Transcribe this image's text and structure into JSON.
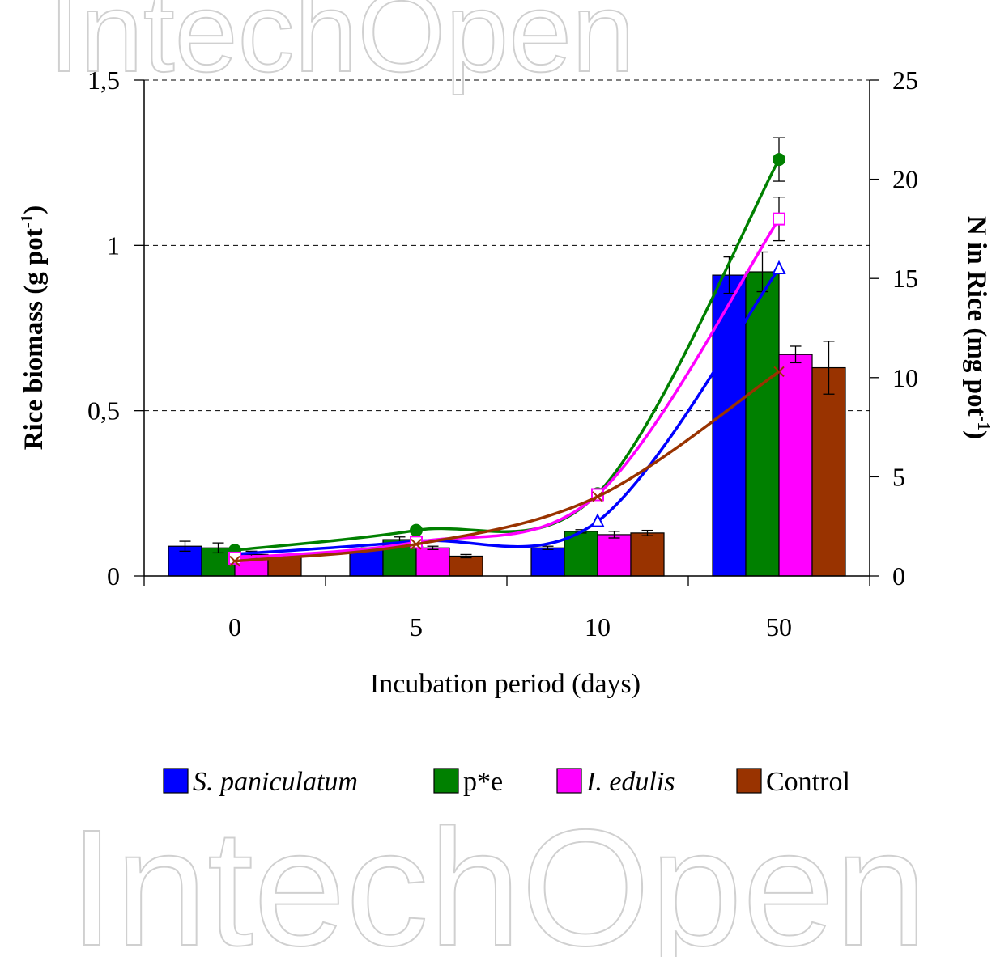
{
  "watermark": "IntechOpen",
  "chart_data": {
    "type": "bar",
    "xlabel": "Incubation period (days)",
    "ylabel_left": {
      "main": "Rice biomass (g pot",
      "sup": "-1",
      "close": ")"
    },
    "ylabel_right": {
      "main": "N in Rice (mg pot",
      "sup": "-1",
      "close": ")"
    },
    "categories": [
      "0",
      "5",
      "10",
      "50"
    ],
    "ylim_left": [
      0,
      1.5
    ],
    "ylim_right": [
      0,
      25
    ],
    "yticks_left": [
      "0",
      "0,5",
      "1",
      "1,5"
    ],
    "yticks_right": [
      "0",
      "5",
      "10",
      "15",
      "20",
      "25"
    ],
    "grid": "dashed horizontal",
    "legend_position": "bottom",
    "legend": [
      {
        "label": "S. paniculatum",
        "italic": true,
        "color": "#0000ff"
      },
      {
        "label": "p*e",
        "italic": false,
        "color": "#008000"
      },
      {
        "label": "I. edulis",
        "italic": true,
        "color": "#ff00ff"
      },
      {
        "label": "Control",
        "italic": false,
        "color": "#993300"
      }
    ],
    "bar_series": [
      {
        "name": "S. paniculatum",
        "color": "#0000ff",
        "values": [
          0.09,
          0.08,
          0.085,
          0.91
        ],
        "errors": [
          0.015,
          0.005,
          0.005,
          0.055
        ]
      },
      {
        "name": "p*e",
        "color": "#008000",
        "values": [
          0.085,
          0.11,
          0.135,
          0.92
        ],
        "errors": [
          0.015,
          0.008,
          0.005,
          0.06
        ]
      },
      {
        "name": "I. edulis",
        "color": "#ff00ff",
        "values": [
          0.065,
          0.085,
          0.125,
          0.67
        ],
        "errors": [
          0.01,
          0.005,
          0.01,
          0.025
        ]
      },
      {
        "name": "Control",
        "color": "#993300",
        "values": [
          0.06,
          0.06,
          0.13,
          0.63
        ],
        "errors": [
          0.0,
          0.005,
          0.008,
          0.08
        ]
      }
    ],
    "line_series": [
      {
        "name": "S. paniculatum",
        "color": "#0000ff",
        "marker": "triangle",
        "values": [
          1.1,
          1.75,
          2.75,
          15.5
        ],
        "errors": [
          0,
          0,
          0,
          0
        ]
      },
      {
        "name": "p*e",
        "color": "#008000",
        "marker": "circle",
        "values": [
          1.3,
          2.3,
          4.15,
          21.0
        ],
        "errors": [
          0,
          0,
          0.2,
          1.1
        ]
      },
      {
        "name": "I. edulis",
        "color": "#ff00ff",
        "marker": "square",
        "values": [
          0.9,
          1.7,
          4.1,
          18.0
        ],
        "errors": [
          0,
          0,
          0,
          1.1
        ]
      },
      {
        "name": "Control",
        "color": "#993300",
        "marker": "x",
        "values": [
          0.75,
          1.6,
          4.0,
          10.3
        ],
        "errors": [
          0,
          0,
          0,
          0
        ]
      }
    ]
  }
}
